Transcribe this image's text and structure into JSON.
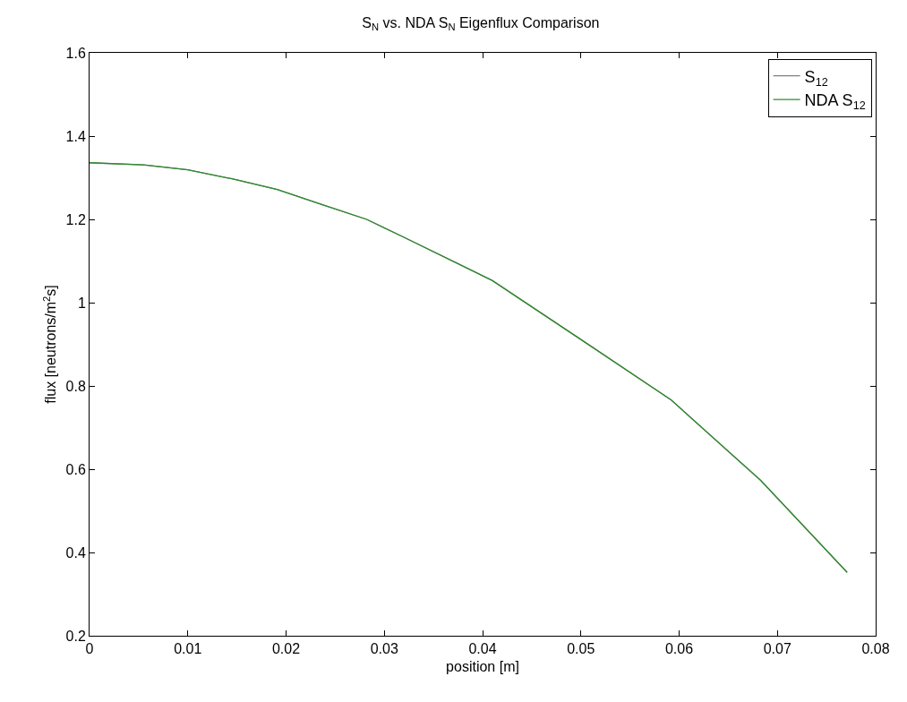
{
  "chart_data": {
    "type": "line",
    "title": "S$_{N}$ vs. NDA S$_{N}$ Eigenflux Comparison",
    "xlabel": "position [m]",
    "ylabel": "flux [neutrons/m$^{2}$s]",
    "x": [
      0,
      0.0055,
      0.01,
      0.0146,
      0.0191,
      0.0237,
      0.0282,
      0.0319,
      0.041,
      0.0501,
      0.0592,
      0.0683,
      0.0771
    ],
    "series": [
      {
        "name": "S$_{12}$",
        "color": "#808080",
        "values": [
          1.336,
          1.331,
          1.319,
          1.297,
          1.272,
          1.235,
          1.2,
          1.158,
          1.053,
          0.91,
          0.766,
          0.573,
          0.352
        ]
      },
      {
        "name": "NDA S$_{12}$",
        "color": "#2e8b2e",
        "values": [
          1.336,
          1.331,
          1.319,
          1.297,
          1.272,
          1.235,
          1.2,
          1.158,
          1.053,
          0.91,
          0.766,
          0.573,
          0.352
        ]
      }
    ],
    "xlim": [
      0,
      0.08
    ],
    "xticks": [
      0,
      0.01,
      0.02,
      0.03,
      0.04,
      0.05,
      0.06,
      0.07,
      0.08
    ],
    "ylim": [
      0.2,
      1.6
    ],
    "yticks": [
      0.2,
      0.4,
      0.6,
      0.8,
      1,
      1.2,
      1.4,
      1.6
    ],
    "legend": "top right",
    "marker": "none",
    "line_style": "solid"
  }
}
